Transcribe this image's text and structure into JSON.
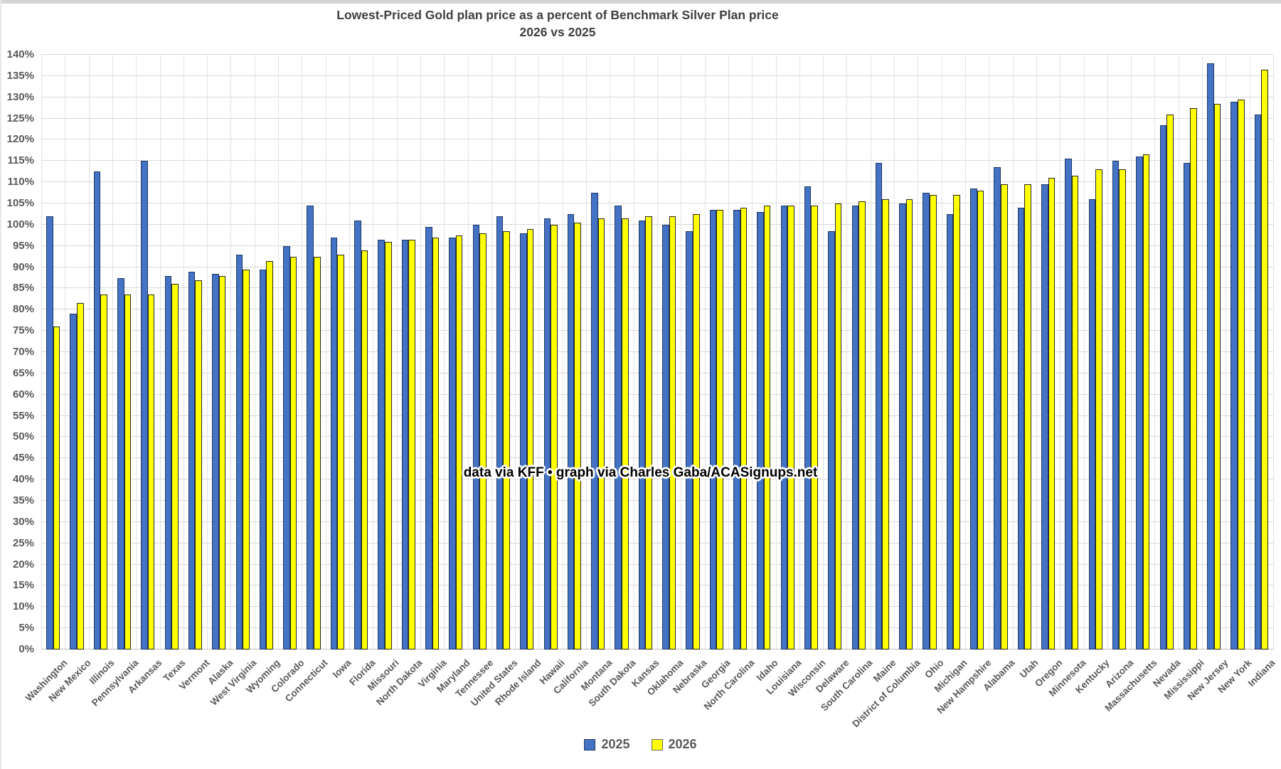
{
  "title": {
    "line1": "Lowest-Priced Gold plan price as a percent of Benchmark Silver Plan price",
    "line2": "2026 vs 2025"
  },
  "annotation": "data via KFF • graph via Charles Gaba/ACASignups.net",
  "colors": {
    "series_2025": "#4472C4",
    "series_2026": "#FFFF00",
    "bar_border_2025": "#1F3864",
    "bar_border_2026": "#262626",
    "gridline": "#D9D9D9",
    "axis_text": "#595959",
    "title_text": "#404040"
  },
  "chart_data": {
    "type": "bar",
    "title": "Lowest-Priced Gold plan price as a percent of Benchmark Silver Plan price",
    "subtitle": "2026 vs 2025",
    "xlabel": "",
    "ylabel": "",
    "grid": true,
    "legend_position": "bottom",
    "annotation": "data via KFF • graph via Charles Gaba/ACASignups.net",
    "y_axis": {
      "min": 0,
      "max": 140,
      "step": 5,
      "format": "percent"
    },
    "y_ticks": [
      "0%",
      "5%",
      "10%",
      "15%",
      "20%",
      "25%",
      "30%",
      "35%",
      "40%",
      "45%",
      "50%",
      "55%",
      "60%",
      "65%",
      "70%",
      "75%",
      "80%",
      "85%",
      "90%",
      "95%",
      "100%",
      "105%",
      "110%",
      "115%",
      "120%",
      "125%",
      "130%",
      "135%",
      "140%"
    ],
    "categories": [
      "Washington",
      "New Mexico",
      "Illinois",
      "Pennsylvania",
      "Arkansas",
      "Texas",
      "Vermont",
      "Alaska",
      "West Virginia",
      "Wyoming",
      "Colorado",
      "Connecticut",
      "Iowa",
      "Florida",
      "Missouri",
      "North Dakota",
      "Virginia",
      "Maryland",
      "Tennessee",
      "United States",
      "Rhode Island",
      "Hawaii",
      "California",
      "Montana",
      "South Dakota",
      "Kansas",
      "Oklahoma",
      "Nebraska",
      "Georgia",
      "North Carolina",
      "Idaho",
      "Louisiana",
      "Wisconsin",
      "Delaware",
      "South Carolina",
      "Maine",
      "District of Columbia",
      "Ohio",
      "Michigan",
      "New Hampshire",
      "Alabama",
      "Utah",
      "Oregon",
      "Minnesota",
      "Kentucky",
      "Arizona",
      "Massachusetts",
      "Nevada",
      "Mississippi",
      "New Jersey",
      "New York",
      "Indiana"
    ],
    "series": [
      {
        "name": "2025",
        "color": "#4472C4",
        "border": "#1F3864",
        "values": [
          102,
          79,
          112.5,
          87.5,
          115,
          88,
          89,
          88.5,
          93,
          89.5,
          95,
          104.5,
          97,
          101,
          96.5,
          96.5,
          99.5,
          97,
          100,
          102,
          98,
          101.5,
          102.5,
          107.5,
          104.5,
          101,
          100,
          98.5,
          103.5,
          103.5,
          103,
          104.5,
          109,
          98.5,
          104.5,
          114.5,
          105,
          107.5,
          102.5,
          108.5,
          113.5,
          104,
          109.5,
          115.5,
          106,
          115,
          116,
          123.5,
          114.5,
          138,
          129,
          126
        ]
      },
      {
        "name": "2026",
        "color": "#FFFF00",
        "border": "#262626",
        "values": [
          76,
          81.5,
          83.5,
          83.5,
          83.5,
          86,
          87,
          88,
          89.5,
          91.5,
          92.5,
          92.5,
          93,
          94,
          96,
          96.5,
          97,
          97.5,
          98,
          98.5,
          99,
          100,
          100.5,
          101.5,
          101.5,
          102,
          102,
          102.5,
          103.5,
          104,
          104.5,
          104.5,
          104.5,
          105,
          105.5,
          106,
          106,
          107,
          107,
          108,
          109.5,
          109.5,
          111,
          111.5,
          113,
          113,
          116.5,
          126,
          127.5,
          128.5,
          129.5,
          136.5
        ]
      }
    ]
  },
  "legend": {
    "items": [
      {
        "label": "2025",
        "color": "#4472C4",
        "border": "#1F3864"
      },
      {
        "label": "2026",
        "color": "#FFFF00",
        "border": "#6b6b6b"
      }
    ]
  }
}
